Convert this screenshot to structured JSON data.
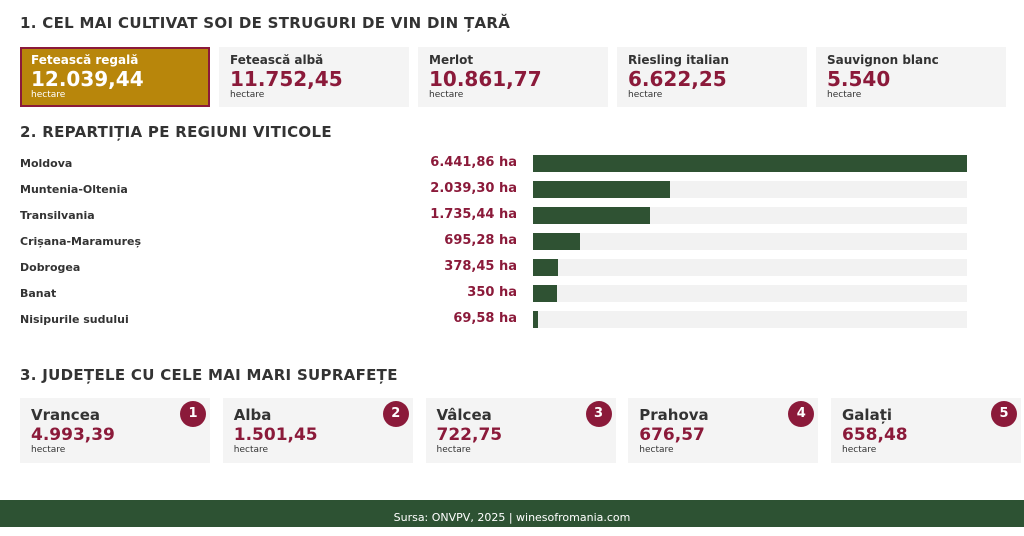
{
  "section1": {
    "title": "1. CEL MAI CULTIVAT SOI DE STRUGURI DE VIN DIN ȚARĂ",
    "cards": [
      {
        "name": "Fetească regală",
        "value": "12.039,44",
        "unit": "hectare"
      },
      {
        "name": "Fetească albă",
        "value": "11.752,45",
        "unit": "hectare"
      },
      {
        "name": "Merlot",
        "value": "10.861,77",
        "unit": "hectare"
      },
      {
        "name": "Riesling italian",
        "value": "6.622,25",
        "unit": "hectare"
      },
      {
        "name": "Sauvignon blanc",
        "value": "5.540",
        "unit": "hectare"
      }
    ]
  },
  "section2": {
    "title": "2. REPARTIȚIA PE REGIUNI VITICOLE",
    "rows": [
      {
        "label": "Moldova",
        "value": "6.441,86 ha",
        "ha": 6441.86
      },
      {
        "label": "Muntenia-Oltenia",
        "value": "2.039,30 ha",
        "ha": 2039.3
      },
      {
        "label": "Transilvania",
        "value": "1.735,44 ha",
        "ha": 1735.44
      },
      {
        "label": "Crișana-Maramureș",
        "value": "695,28 ha",
        "ha": 695.28
      },
      {
        "label": "Dobrogea",
        "value": "378,45 ha",
        "ha": 378.45
      },
      {
        "label": "Banat",
        "value": "350 ha",
        "ha": 350
      },
      {
        "label": "Nisipurile sudului",
        "value": "69,58 ha",
        "ha": 69.58
      }
    ]
  },
  "section3": {
    "title": "3. JUDEȚELE CU CELE MAI MARI SUPRAFEȚE",
    "cards": [
      {
        "rank": "1",
        "name": "Vrancea",
        "value": "4.993,39",
        "unit": "hectare"
      },
      {
        "rank": "2",
        "name": "Alba",
        "value": "1.501,45",
        "unit": "hectare"
      },
      {
        "rank": "3",
        "name": "Vâlcea",
        "value": "722,75",
        "unit": "hectare"
      },
      {
        "rank": "4",
        "name": "Prahova",
        "value": "676,57",
        "unit": "hectare"
      },
      {
        "rank": "5",
        "name": "Galați",
        "value": "658,48",
        "unit": "hectare"
      }
    ]
  },
  "footer": "Sursa: ONVPV, 2025 | winesofromania.com",
  "colors": {
    "accent": "#8b1a3a",
    "gold": "#b8860b",
    "green": "#2f5233"
  }
}
